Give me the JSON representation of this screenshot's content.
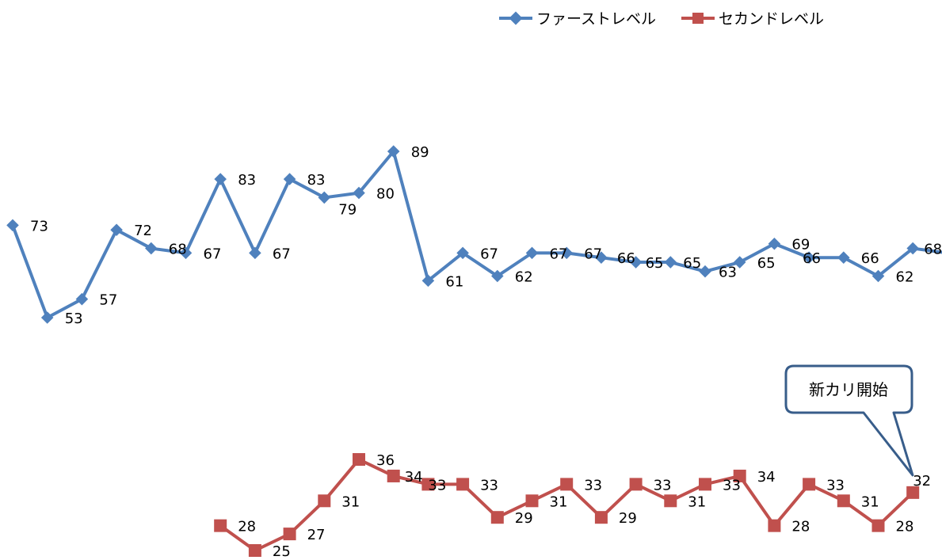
{
  "chart_data": {
    "type": "line",
    "grid": false,
    "legend_position": "top-right",
    "series": [
      {
        "name": "ファーストレベル",
        "color": "#4F81BD",
        "marker": "diamond",
        "values": [
          73,
          53,
          57,
          72,
          68,
          67,
          83,
          67,
          83,
          79,
          80,
          89,
          61,
          67,
          62,
          67,
          67,
          66,
          65,
          65,
          63,
          65,
          69,
          66,
          66,
          62,
          68,
          67
        ]
      },
      {
        "name": "セカンドレベル",
        "color": "#C0504D",
        "marker": "square",
        "values": [
          null,
          null,
          null,
          null,
          null,
          null,
          28,
          25,
          27,
          31,
          36,
          34,
          33,
          33,
          29,
          31,
          33,
          29,
          33,
          31,
          33,
          34,
          28,
          33,
          31,
          28,
          32,
          null
        ]
      }
    ],
    "annotations": [
      {
        "text": "新カリ開始",
        "series": 1,
        "point_index": 26
      }
    ]
  }
}
